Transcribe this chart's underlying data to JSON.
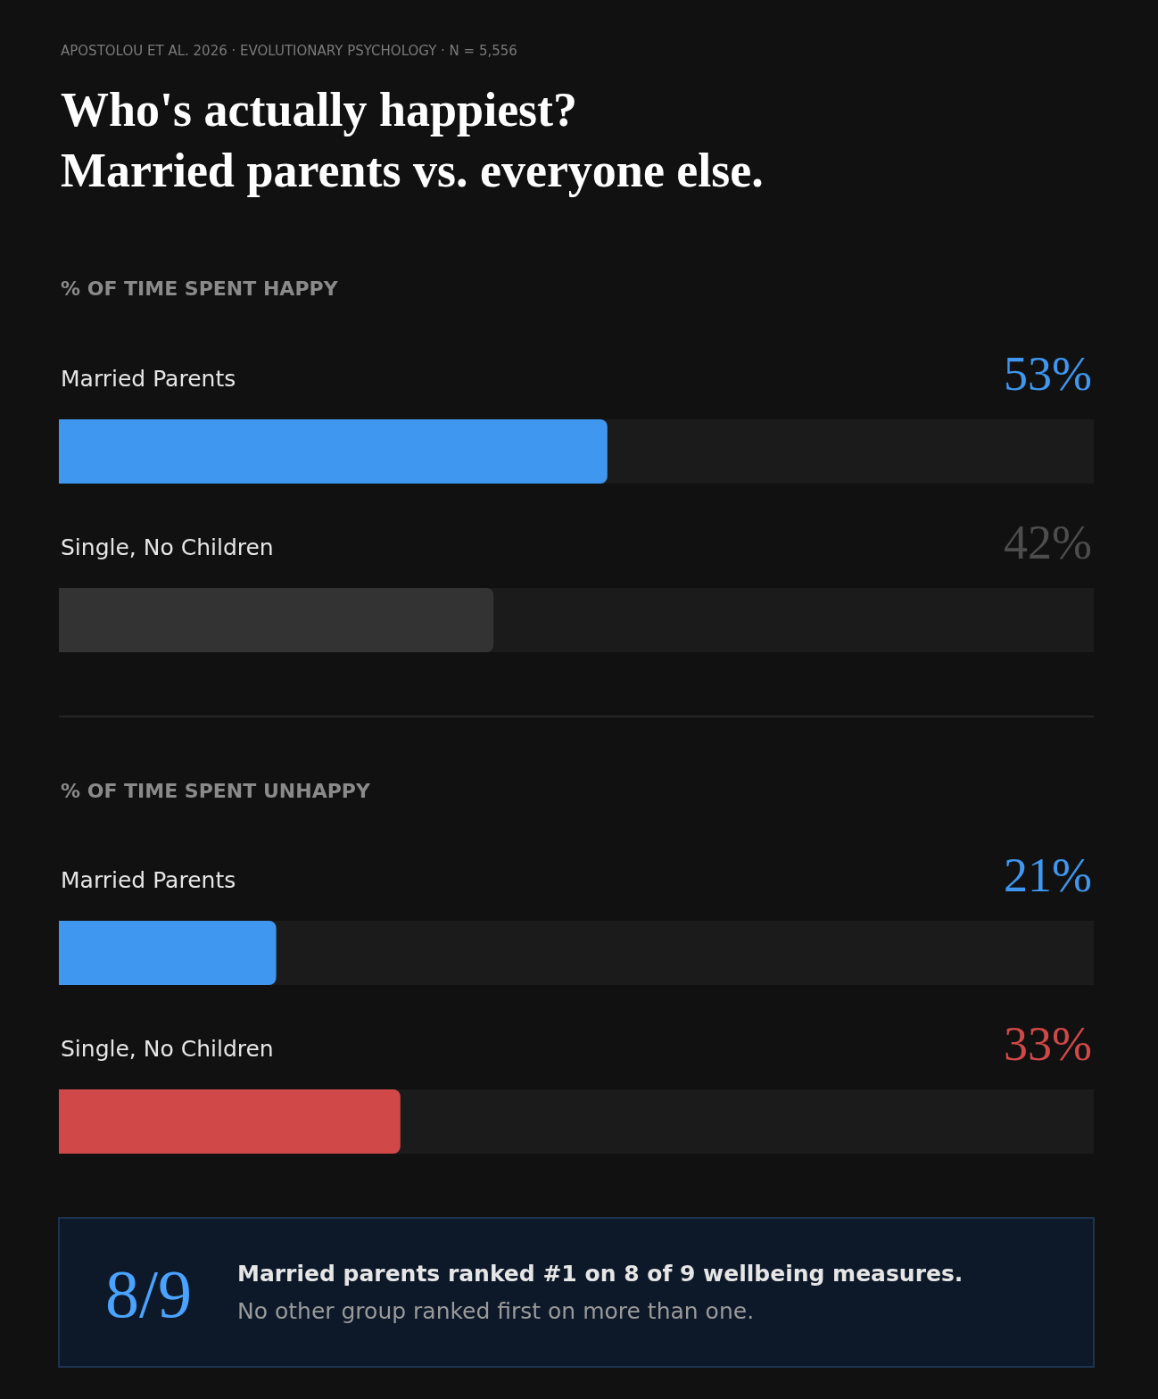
{
  "chart_data": [
    {
      "type": "other",
      "title": "Who's actually happiest?",
      "subtitle": "Married parents vs. everyone else.",
      "annotations": [
        "APOSTOLOU ET AL. 2026 · EVOLUTIONARY PSYCHOLOGY · N = 5,556"
      ]
    },
    {
      "type": "bar",
      "orientation": "horizontal",
      "title": "% OF TIME SPENT HAPPY",
      "categories": [
        "Married Parents",
        "Single, No Children"
      ],
      "values": [
        53,
        42
      ],
      "value_labels": [
        "53%",
        "42%"
      ],
      "colors": [
        "#3f97ef",
        "#333333"
      ],
      "xlim": [
        0,
        100
      ],
      "tick_labels": "y"
    },
    {
      "type": "bar",
      "orientation": "horizontal",
      "title": "% OF TIME SPENT UNHAPPY",
      "categories": [
        "Married Parents",
        "Single, No Children"
      ],
      "values": [
        21,
        33
      ],
      "value_labels": [
        "21%",
        "33%"
      ],
      "colors": [
        "#3f97ef",
        "#d04848"
      ],
      "xlim": [
        0,
        100
      ],
      "tick_labels": "y"
    },
    {
      "type": "other",
      "annotations": [
        "8/9",
        "Married parents ranked #1 on 8 of 9 wellbeing measures.",
        "No other group ranked first on more than one."
      ]
    }
  ]
}
